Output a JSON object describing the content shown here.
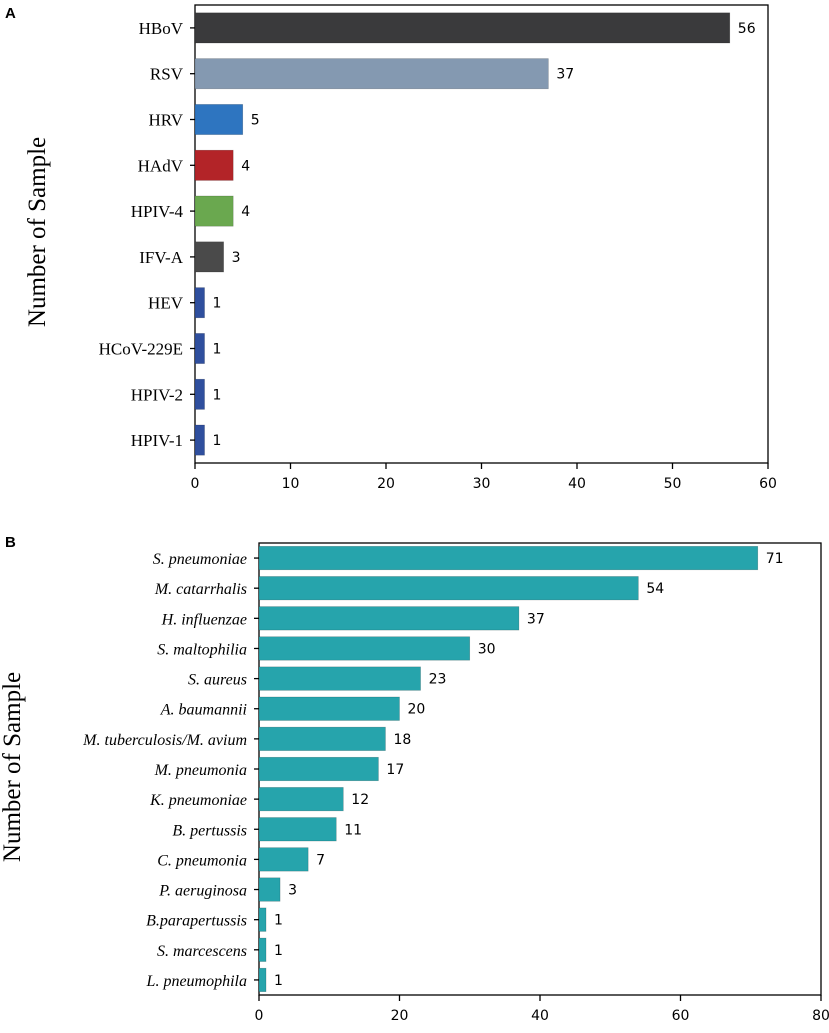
{
  "chart_data": [
    {
      "panel": "A",
      "type": "bar",
      "orientation": "horizontal",
      "ylabel": "Number of Sample",
      "xlabel": "",
      "xlim": [
        0,
        60
      ],
      "xticks": [
        0,
        10,
        20,
        30,
        40,
        50,
        60
      ],
      "categories": [
        "HBoV",
        "RSV",
        "HRV",
        "HAdV",
        "HPIV-4",
        "IFV-A",
        "HEV",
        "HCoV-229E",
        "HPIV-2",
        "HPIV-1"
      ],
      "values": [
        56,
        37,
        5,
        4,
        4,
        3,
        1,
        1,
        1,
        1
      ],
      "colors": [
        "#3a3a3c",
        "#8499b1",
        "#2e75c0",
        "#b32428",
        "#6aa84f",
        "#4a4a4a",
        "#2f4f9e",
        "#2f4f9e",
        "#2f4f9e",
        "#2f4f9e"
      ]
    },
    {
      "panel": "B",
      "type": "bar",
      "orientation": "horizontal",
      "ylabel": "Number of Sample",
      "xlabel": "",
      "xlim": [
        0,
        80
      ],
      "xticks": [
        0,
        20,
        40,
        60,
        80
      ],
      "categories": [
        "S. pneumoniae",
        "M. catarrhalis",
        "H. influenzae",
        "S. maltophilia",
        "S. aureus",
        "A. baumannii",
        "M. tuberculosis/M. avium",
        "M. pneumonia",
        "K. pneumoniae",
        "B. pertussis",
        "C. pneumonia",
        "P. aeruginosa",
        "B.parapertussis",
        "S. marcescens",
        "L. pneumophila"
      ],
      "values": [
        71,
        54,
        37,
        30,
        23,
        20,
        18,
        17,
        12,
        11,
        7,
        3,
        1,
        1,
        1
      ],
      "color": "#26a4ac"
    }
  ]
}
